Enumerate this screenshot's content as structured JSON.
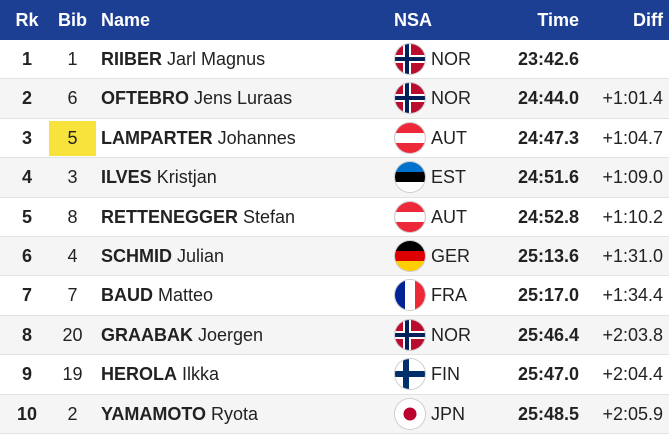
{
  "table": {
    "columns": [
      "Rk",
      "Bib",
      "Name",
      "NSA",
      "Time",
      "Diff"
    ],
    "rows": [
      {
        "rk": 1,
        "bib": 1,
        "last": "RIIBER",
        "first": "Jarl Magnus",
        "nsa": "NOR",
        "time": "23:42.6"
      },
      {
        "rk": 2,
        "bib": 6,
        "last": "OFTEBRO",
        "first": "Jens Luraas",
        "nsa": "NOR",
        "time": "24:44.0",
        "diff": "+1:01.4"
      },
      {
        "rk": 3,
        "bib": 5,
        "last": "LAMPARTER",
        "first": "Johannes",
        "nsa": "AUT",
        "time": "24:47.3",
        "diff": "+1:04.7"
      },
      {
        "rk": 4,
        "bib": 3,
        "last": "ILVES",
        "first": "Kristjan",
        "nsa": "EST",
        "time": "24:51.6",
        "diff": "+1:09.0"
      },
      {
        "rk": 5,
        "bib": 8,
        "last": "RETTENEGGER",
        "first": "Stefan",
        "nsa": "AUT",
        "time": "24:52.8",
        "diff": "+1:10.2"
      },
      {
        "rk": 6,
        "bib": 4,
        "last": "SCHMID",
        "first": "Julian",
        "nsa": "GER",
        "time": "25:13.6",
        "diff": "+1:31.0"
      },
      {
        "rk": 7,
        "bib": 7,
        "last": "BAUD",
        "first": "Matteo",
        "nsa": "FRA",
        "time": "25:17.0",
        "diff": "+1:34.4"
      },
      {
        "rk": 8,
        "bib": 20,
        "last": "GRAABAK",
        "first": "Joergen",
        "nsa": "NOR",
        "time": "25:46.4",
        "diff": "+2:03.8"
      },
      {
        "rk": 9,
        "bib": 19,
        "last": "HEROLA",
        "first": "Ilkka",
        "nsa": "FIN",
        "time": "25:47.0",
        "diff": "+2:04.4"
      },
      {
        "rk": 10,
        "bib": 2,
        "last": "YAMAMOTO",
        "first": "Ryota",
        "nsa": "JPN",
        "time": "25:48.5",
        "diff": "+2:05.9"
      }
    ]
  }
}
